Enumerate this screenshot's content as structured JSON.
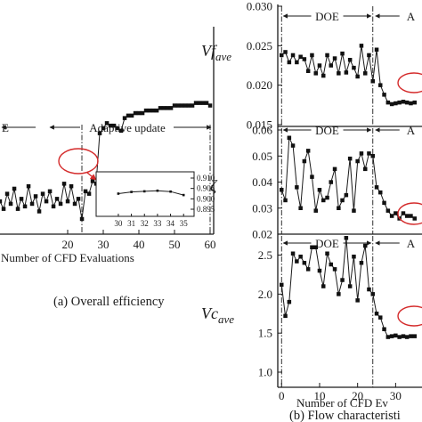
{
  "chart_data": [
    {
      "id": "overall",
      "type": "line",
      "caption": "(a) Overall efficiency",
      "xlabel": "Number of CFD Evaluations",
      "ylabel": "",
      "xlim": [
        0,
        61
      ],
      "ylim": [
        0.89,
        0.95
      ],
      "xticks": [
        20,
        30,
        40,
        50,
        60
      ],
      "vline_x": 24,
      "annotations": [
        "E",
        "Adaptive update"
      ],
      "series": [
        {
          "x": [
            0,
            1,
            2,
            3,
            4,
            5,
            6,
            7,
            8,
            9,
            10,
            11,
            12,
            13,
            14,
            15,
            16,
            17,
            18,
            19,
            20,
            21,
            22,
            23,
            24,
            25,
            26,
            27,
            28,
            29,
            30,
            31,
            32,
            33,
            34,
            35,
            36,
            37,
            38,
            39,
            40,
            41,
            42,
            43,
            44,
            45,
            46,
            47,
            48,
            49,
            50,
            51,
            52,
            53,
            54,
            55,
            56,
            57,
            58,
            59,
            60
          ],
          "y": [
            0.905,
            0.903,
            0.9,
            0.906,
            0.902,
            0.908,
            0.9,
            0.904,
            0.901,
            0.909,
            0.902,
            0.905,
            0.899,
            0.906,
            0.903,
            0.907,
            0.901,
            0.904,
            0.902,
            0.91,
            0.903,
            0.909,
            0.902,
            0.904,
            0.896,
            0.907,
            0.906,
            0.911,
            0.91,
            0.93,
            0.932,
            0.934,
            0.933,
            0.933,
            0.932,
            0.931,
            0.936,
            0.937,
            0.937,
            0.938,
            0.938,
            0.938,
            0.939,
            0.939,
            0.939,
            0.939,
            0.94,
            0.94,
            0.94,
            0.94,
            0.941,
            0.941,
            0.941,
            0.941,
            0.941,
            0.941,
            0.942,
            0.942,
            0.942,
            0.942,
            0.941
          ]
        }
      ],
      "inset": {
        "xlim": [
          29.8,
          35.6
        ],
        "ylim": [
          0.895,
          0.91
        ],
        "xticks": [
          30,
          31,
          32,
          33,
          34,
          35
        ],
        "yticks": [
          "0.910",
          "0.905",
          "0.900",
          "0.895"
        ],
        "x": [
          30,
          31,
          32,
          33,
          34,
          35
        ],
        "y": [
          0.9025,
          0.9033,
          0.9036,
          0.9039,
          0.9035,
          0.9018
        ]
      }
    },
    {
      "id": "vf",
      "type": "line",
      "ylabel": "Vf",
      "ylabel_sub": "ave",
      "xlim": [
        -1,
        36
      ],
      "ylim": [
        0.015,
        0.03
      ],
      "yticks": [
        "0.030",
        "0.025",
        "0.020",
        "0.015"
      ],
      "vlines_x": [
        0,
        24
      ],
      "annotations": [
        "DOE",
        "A"
      ],
      "series": [
        {
          "x": [
            0,
            1,
            2,
            3,
            4,
            5,
            6,
            7,
            8,
            9,
            10,
            11,
            12,
            13,
            14,
            15,
            16,
            17,
            18,
            19,
            20,
            21,
            22,
            23,
            24,
            25,
            26,
            27,
            28,
            29,
            30,
            31,
            32,
            33,
            34,
            35
          ],
          "y": [
            0.0238,
            0.0242,
            0.0229,
            0.0238,
            0.0229,
            0.0236,
            0.0233,
            0.0218,
            0.0238,
            0.0215,
            0.0225,
            0.0212,
            0.0238,
            0.0225,
            0.0234,
            0.0215,
            0.024,
            0.0216,
            0.0232,
            0.0222,
            0.0211,
            0.025,
            0.0215,
            0.0238,
            0.0205,
            0.0245,
            0.02,
            0.0188,
            0.0178,
            0.0176,
            0.0177,
            0.0178,
            0.0179,
            0.0178,
            0.0177,
            0.0178
          ]
        }
      ]
    },
    {
      "id": "zeta",
      "type": "line",
      "ylabel": "ζ",
      "xlim": [
        -1,
        36
      ],
      "ylim": [
        0.02,
        0.06
      ],
      "yticks": [
        "0.06",
        "0.05",
        "0.04",
        "0.03",
        "0.02"
      ],
      "vlines_x": [
        0,
        24
      ],
      "annotations": [
        "DOE",
        "A"
      ],
      "series": [
        {
          "x": [
            0,
            1,
            2,
            3,
            4,
            5,
            6,
            7,
            8,
            9,
            10,
            11,
            12,
            13,
            14,
            15,
            16,
            17,
            18,
            19,
            20,
            21,
            22,
            23,
            24,
            25,
            26,
            27,
            28,
            29,
            30,
            31,
            32,
            33,
            34,
            35
          ],
          "y": [
            0.037,
            0.033,
            0.057,
            0.054,
            0.038,
            0.03,
            0.048,
            0.052,
            0.042,
            0.029,
            0.037,
            0.033,
            0.034,
            0.04,
            0.045,
            0.03,
            0.033,
            0.035,
            0.049,
            0.029,
            0.048,
            0.051,
            0.045,
            0.051,
            0.05,
            0.038,
            0.036,
            0.032,
            0.029,
            0.027,
            0.028,
            0.026,
            0.028,
            0.027,
            0.027,
            0.026
          ]
        }
      ]
    },
    {
      "id": "vc",
      "type": "line",
      "ylabel": "Vc",
      "ylabel_sub": "ave",
      "xlim": [
        -1,
        36
      ],
      "ylim": [
        1.0,
        2.7
      ],
      "yticks": [
        "2.5",
        "2.0",
        "1.5",
        "1.0"
      ],
      "xticks": [
        0,
        10,
        20,
        30
      ],
      "vlines_x": [
        0,
        24
      ],
      "xlabel": "Number of CFD Ev",
      "annotations": [
        "DOE",
        "A"
      ],
      "caption": "(b) Flow characteristi",
      "series": [
        {
          "x": [
            0,
            1,
            2,
            3,
            4,
            5,
            6,
            7,
            8,
            9,
            10,
            11,
            12,
            13,
            14,
            15,
            16,
            17,
            18,
            19,
            20,
            21,
            22,
            23,
            24,
            25,
            26,
            27,
            28,
            29,
            30,
            31,
            32,
            33,
            34,
            35
          ],
          "y": [
            2.12,
            1.72,
            1.9,
            2.52,
            2.42,
            2.48,
            2.4,
            2.32,
            2.6,
            2.6,
            2.3,
            2.1,
            2.52,
            2.38,
            2.32,
            2.0,
            2.18,
            2.72,
            2.1,
            2.48,
            1.92,
            2.4,
            2.62,
            2.06,
            2.0,
            1.75,
            1.7,
            1.55,
            1.45,
            1.46,
            1.47,
            1.45,
            1.46,
            1.45,
            1.46,
            1.46
          ]
        }
      ]
    }
  ]
}
